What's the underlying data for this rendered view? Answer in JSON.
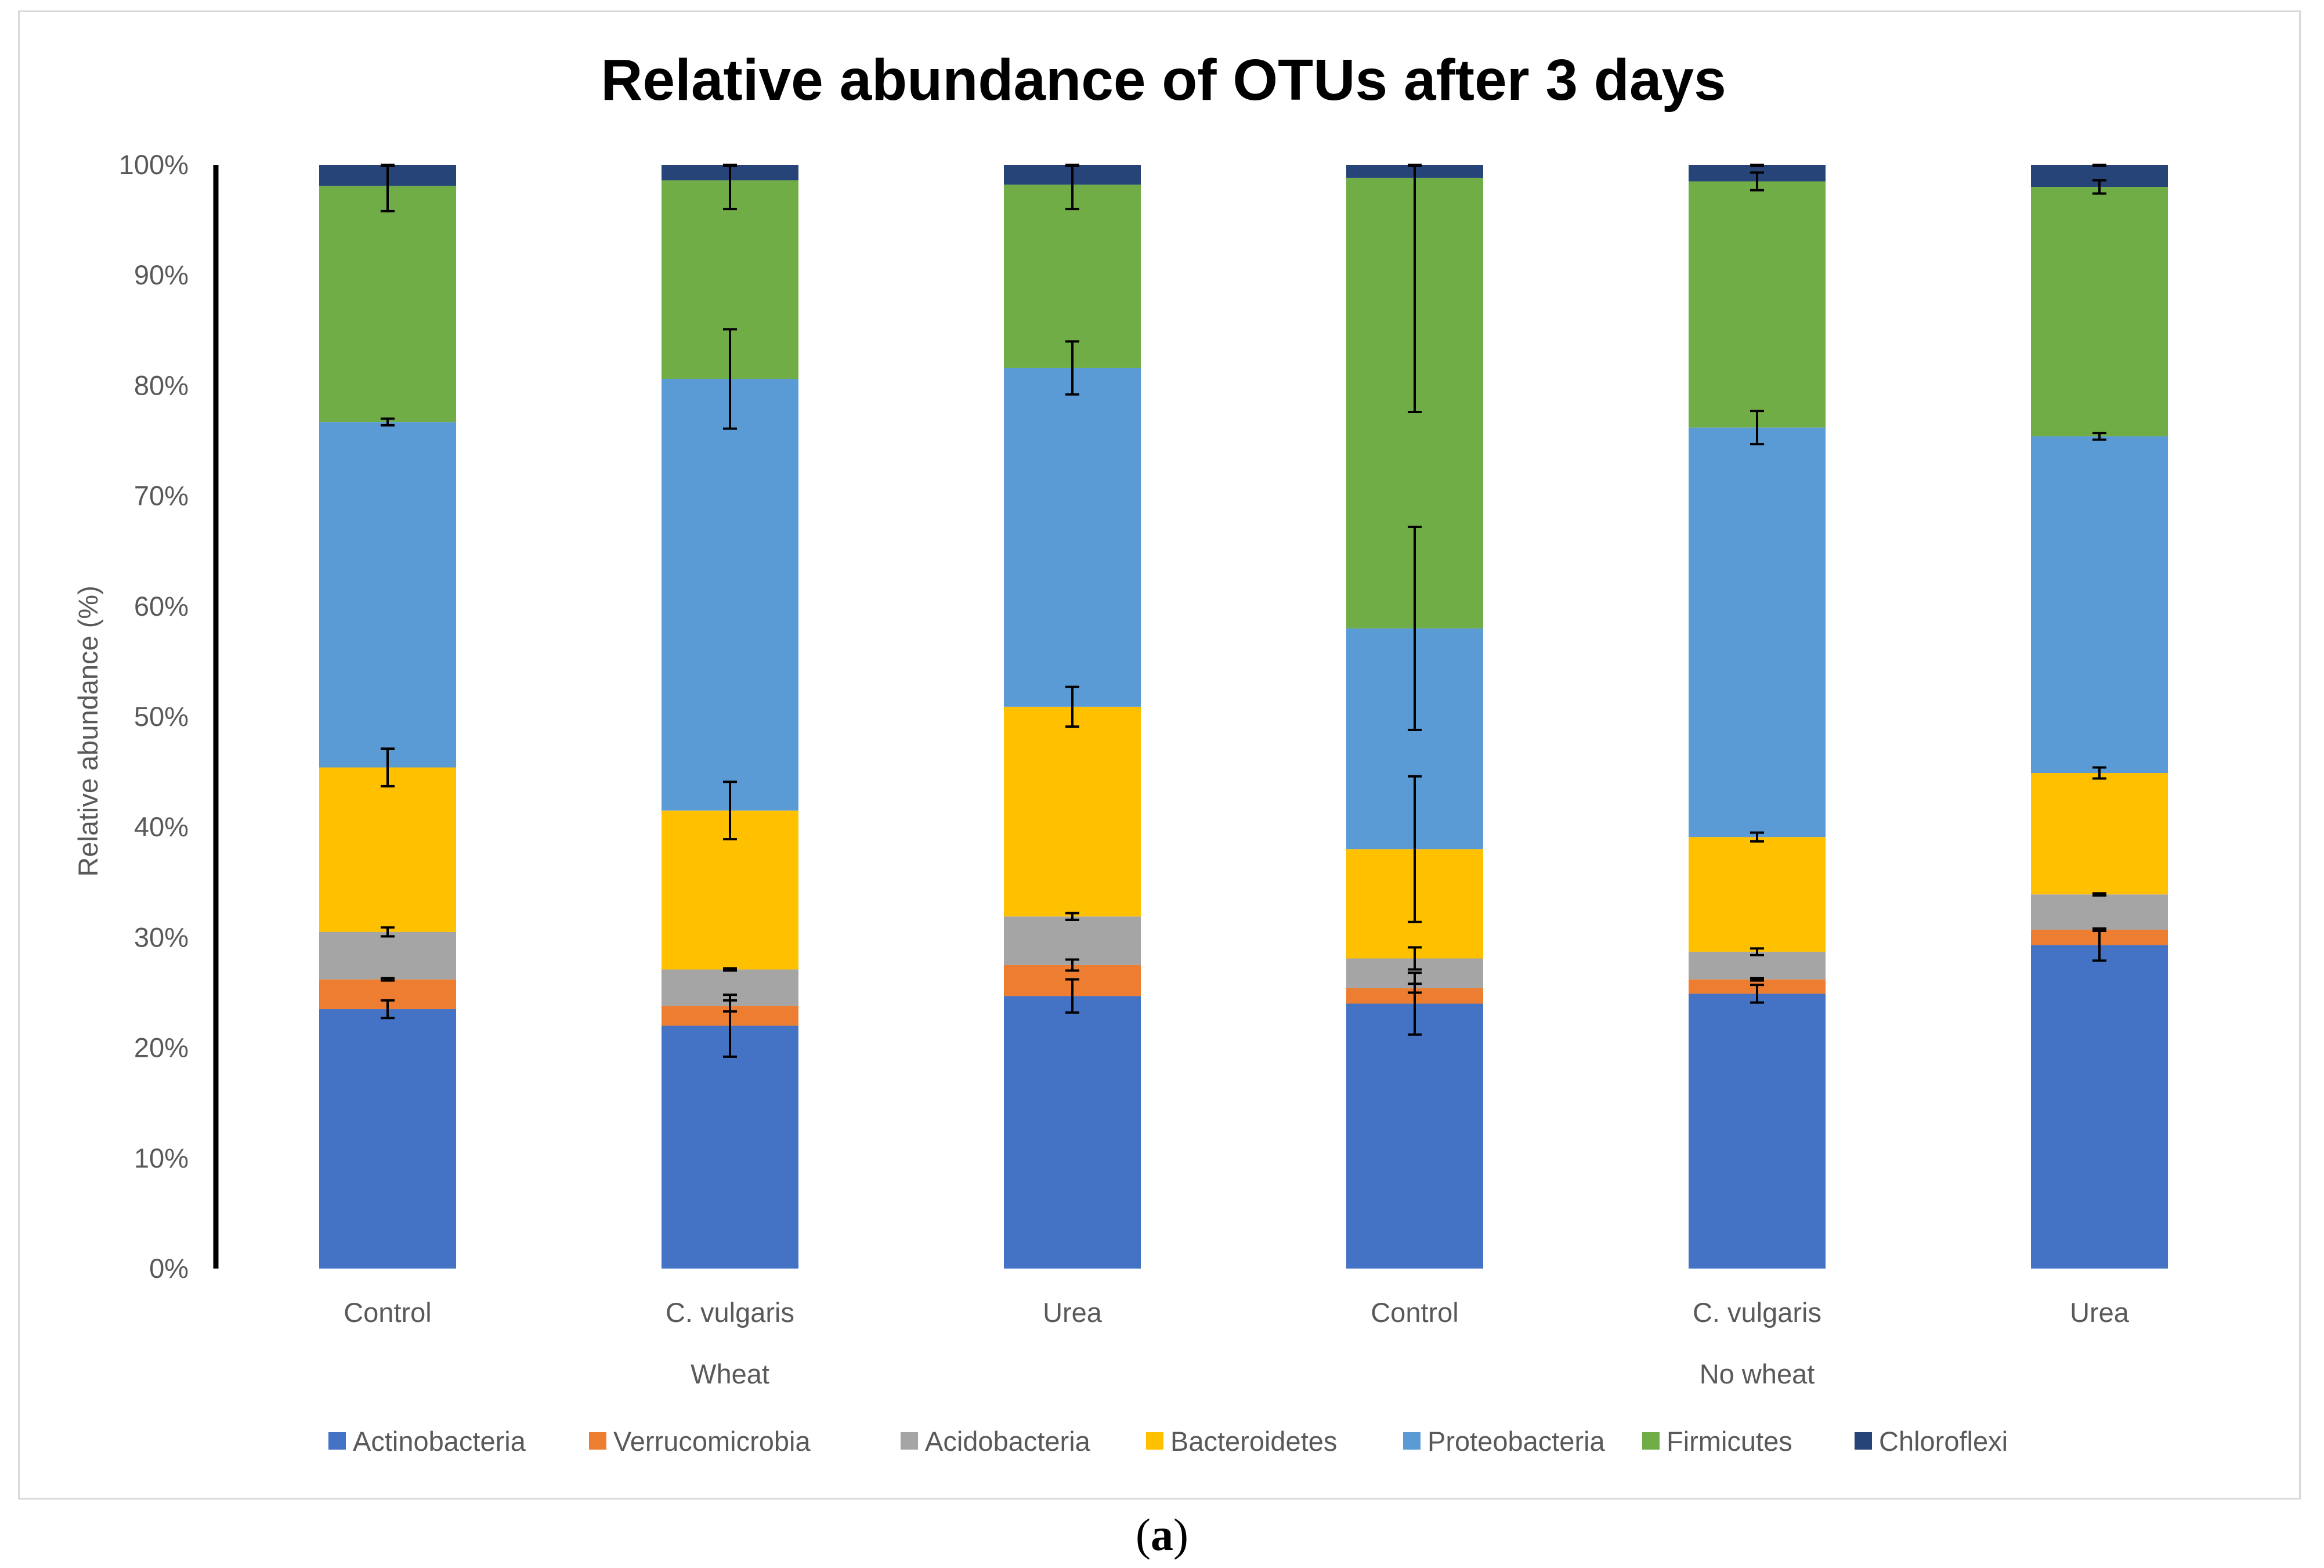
{
  "panel_label": {
    "open": "(",
    "letter": "a",
    "close": ")"
  },
  "chart_data": {
    "type": "bar",
    "stacked": true,
    "title": "Relative abundance of OTUs after 3 days",
    "xlabel": "",
    "ylabel": "Relative abundance (%)",
    "ylim": [
      0,
      100
    ],
    "yticks": [
      "0%",
      "10%",
      "20%",
      "30%",
      "40%",
      "50%",
      "60%",
      "70%",
      "80%",
      "90%",
      "100%"
    ],
    "categories": [
      "Control",
      "C. vulgaris",
      "Urea",
      "Control",
      "C. vulgaris",
      "Urea"
    ],
    "groups": [
      {
        "label": "Wheat",
        "categories": [
          0,
          1,
          2
        ]
      },
      {
        "label": "No wheat",
        "categories": [
          3,
          4,
          5
        ]
      }
    ],
    "legend_position": "bottom",
    "grid": false,
    "series": [
      {
        "name": "Actinobacteria",
        "color": "#4472c4",
        "values": [
          23.5,
          22.0,
          24.7,
          24.0,
          24.9,
          29.3
        ],
        "errors": [
          0.8,
          2.8,
          1.5,
          2.8,
          0.8,
          1.4
        ]
      },
      {
        "name": "Verrucomicrobia",
        "color": "#ed7d31",
        "values": [
          2.7,
          1.8,
          2.8,
          1.4,
          1.3,
          1.4
        ],
        "errors": [
          0.1,
          0.5,
          0.5,
          0.4,
          0.1,
          0.1
        ]
      },
      {
        "name": "Acidobacteria",
        "color": "#a5a5a5",
        "values": [
          4.3,
          3.3,
          4.4,
          2.7,
          2.5,
          3.2
        ],
        "errors": [
          0.4,
          0.1,
          0.3,
          1.0,
          0.3,
          0.1
        ]
      },
      {
        "name": "Bacteroidetes",
        "color": "#ffc000",
        "values": [
          14.9,
          14.4,
          19.0,
          9.9,
          10.4,
          11.0
        ],
        "errors": [
          1.7,
          2.6,
          1.8,
          6.6,
          0.4,
          0.5
        ]
      },
      {
        "name": "Proteobacteria",
        "color": "#5b9bd5",
        "values": [
          31.3,
          39.1,
          30.7,
          20.0,
          37.1,
          30.5
        ],
        "errors": [
          0.3,
          4.5,
          2.4,
          9.2,
          1.5,
          0.3
        ]
      },
      {
        "name": "Firmicutes",
        "color": "#70ad47",
        "values": [
          21.4,
          18.0,
          16.6,
          40.8,
          22.3,
          22.6
        ],
        "errors": [
          2.3,
          2.6,
          2.2,
          21.2,
          0.8,
          0.6
        ]
      },
      {
        "name": "Chloroflexi",
        "color": "#264478",
        "values": [
          1.9,
          1.4,
          1.8,
          1.2,
          1.5,
          2.0
        ],
        "errors": [
          0.1,
          0.1,
          0.1,
          0.1,
          0.1,
          0.1
        ]
      }
    ]
  }
}
